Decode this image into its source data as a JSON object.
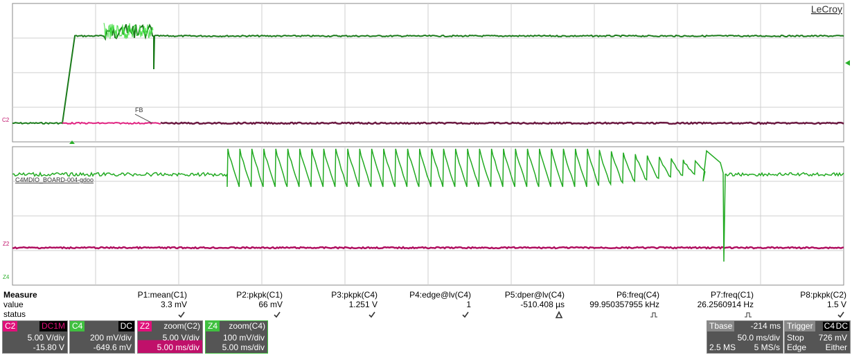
{
  "brand": "LeCroy",
  "trace_labels": {
    "fb": "FB",
    "c2": "C2",
    "c4": "C4MDIO_BOARD-004-gdoo",
    "z2": "Z2",
    "z4": "Z4"
  },
  "measure": {
    "title": "Measure",
    "row_labels": [
      "value",
      "status"
    ],
    "params": [
      {
        "name": "P1:mean(C1)",
        "value": "3.3 mV"
      },
      {
        "name": "P2:pkpk(C1)",
        "value": "66 mV"
      },
      {
        "name": "P3:pkpk(C4)",
        "value": "1.251 V"
      },
      {
        "name": "P4:edge@lv(C4)",
        "value": "1"
      },
      {
        "name": "P5:dper@lv(C4)",
        "value": "-510.408 µs"
      },
      {
        "name": "P6:freq(C4)",
        "value": "99.950357955 kHz"
      },
      {
        "name": "P7:freq(C1)",
        "value": "26.2560914 Hz"
      },
      {
        "name": "P8:pkpk(C2)",
        "value": "1.5 V"
      }
    ]
  },
  "channels": [
    {
      "id": "C2",
      "mode": "DC1M",
      "scale": "5.00 V/div",
      "offset": "-15.80 V"
    },
    {
      "id": "C4",
      "mode": "DC",
      "scale": "200 mV/div",
      "offset": "-649.6 mV"
    },
    {
      "id": "Z2",
      "mode": "zoom(C2)",
      "scale": "5.00 V/div",
      "offset": "5.00 ms/div"
    },
    {
      "id": "Z4",
      "mode": "zoom(C4)",
      "scale": "100 mV/div",
      "offset": "5.00 ms/div"
    }
  ],
  "timebase": {
    "label": "Tbase",
    "delay": "-214 ms",
    "scale": "50.0 ms/div",
    "samples": "2.5 MS",
    "rate": "5 MS/s"
  },
  "trigger": {
    "label": "Trigger",
    "source": "C4",
    "coupling": "DC",
    "mode": "Stop",
    "level": "726 mV",
    "type": "Edge",
    "slope": "Either"
  }
}
